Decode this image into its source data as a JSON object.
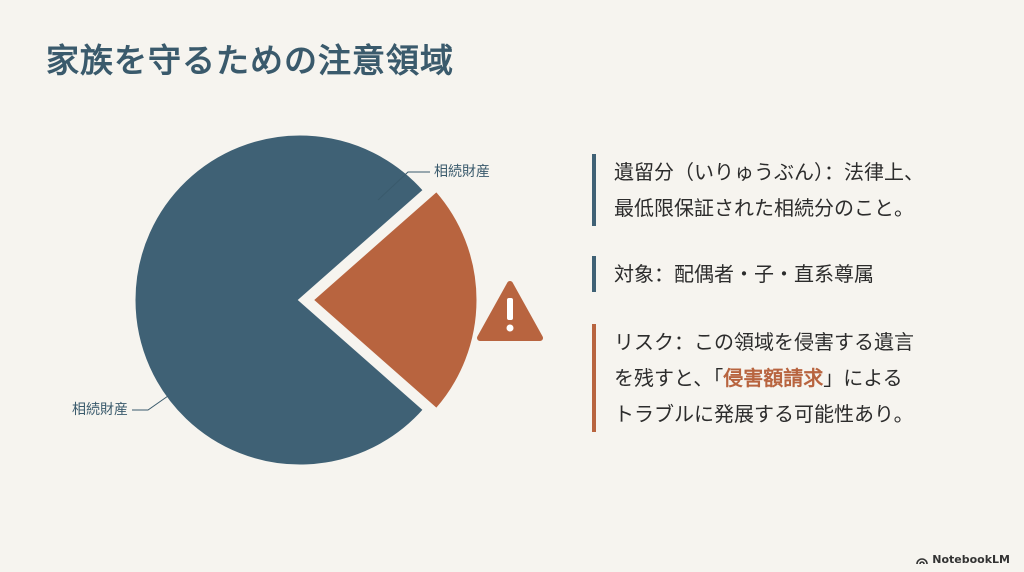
{
  "header": {
    "title": "家族を守るための注意領域"
  },
  "chart_data": {
    "type": "pie",
    "categories": [
      "相続財産",
      null
    ],
    "values": [
      77,
      23
    ],
    "colors": [
      "#3f6175",
      "#b8643f"
    ],
    "annotations": [
      {
        "text": "相続財産"
      }
    ]
  },
  "notes": [
    {
      "color": "#3f6175",
      "lines": [
        [
          "遺留分（いりゅうぶん）：法律上、"
        ],
        [
          "最低限保証された相続分のこと。"
        ]
      ]
    },
    {
      "color": "#3f6175",
      "lines": [
        [
          "対象：配偶者・子・直系尊属"
        ]
      ]
    },
    {
      "color": "#b8643f",
      "lines": [
        [
          "リスク：この領域を侵害する遺言"
        ],
        [
          "を残すと、「",
          "侵害額請求",
          "」による"
        ],
        [
          "トラブルに発展する可能性あり。"
        ]
      ],
      "highlight": [
        1,
        1
      ],
      "highlight_color": "#b8643f"
    }
  ],
  "footer": {
    "brand": "NotebookLM"
  }
}
